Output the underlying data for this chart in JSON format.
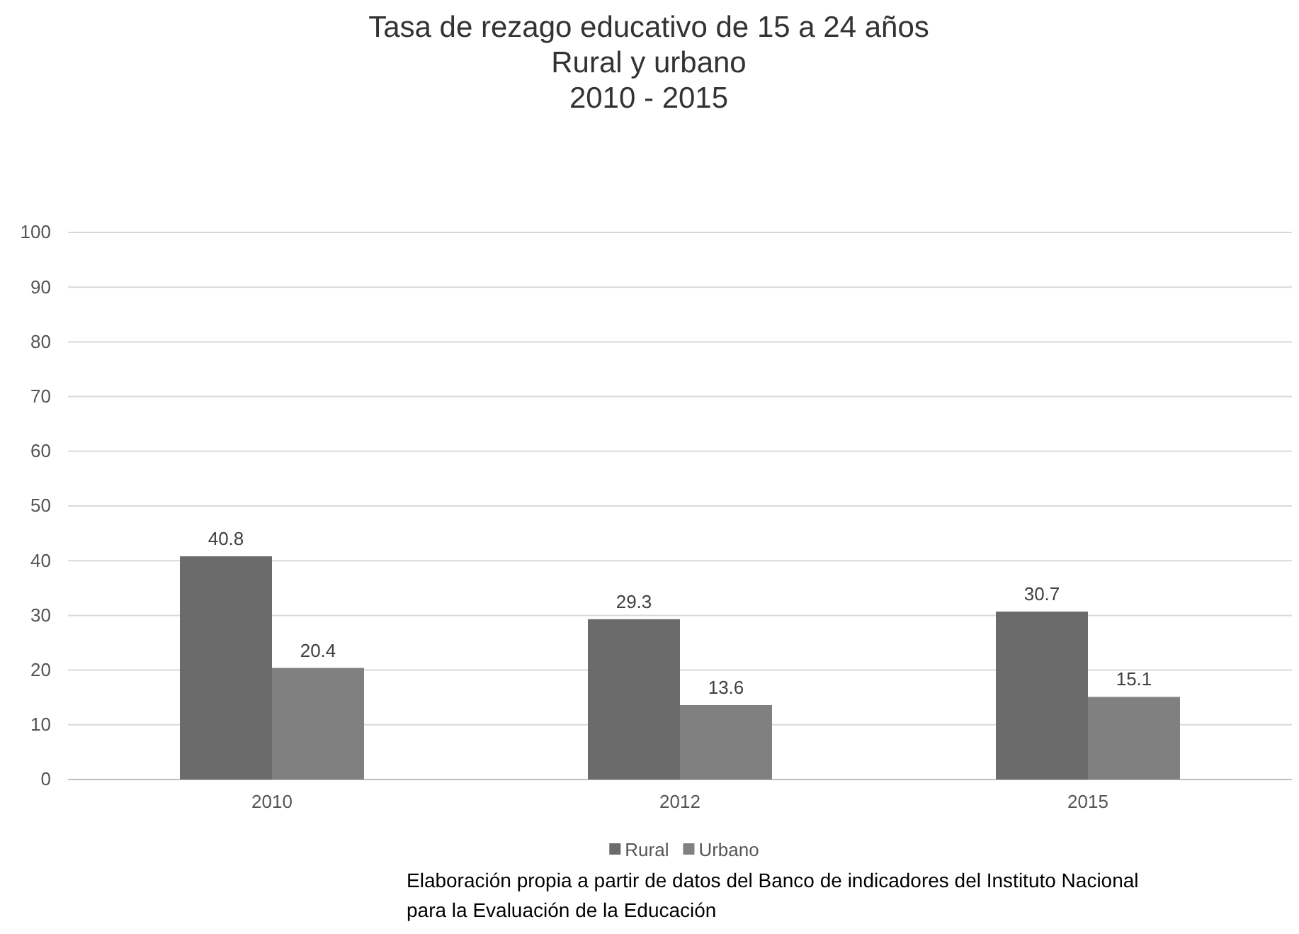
{
  "chart_data": {
    "type": "bar",
    "title": "Tasa de rezago educativo de 15 a 24 años",
    "subtitle": "Rural y urbano\n2010 - 2015",
    "categories": [
      "2010",
      "2012",
      "2015"
    ],
    "series": [
      {
        "name": "Rural",
        "color": "#6b6b6b",
        "values": [
          40.8,
          29.3,
          30.7
        ]
      },
      {
        "name": "Urbano",
        "color": "#808080",
        "values": [
          20.4,
          13.6,
          15.1
        ]
      }
    ],
    "ylim": [
      0,
      100
    ],
    "yticks": [
      0,
      10,
      20,
      30,
      40,
      50,
      60,
      70,
      80,
      90,
      100
    ],
    "grid": "y",
    "legend": "bottom",
    "data_labels": true,
    "annotations": [
      "Elaboración propia a partir de datos del Banco de indicadores del Instituto Nacional para la Evaluación de la Educación"
    ]
  }
}
